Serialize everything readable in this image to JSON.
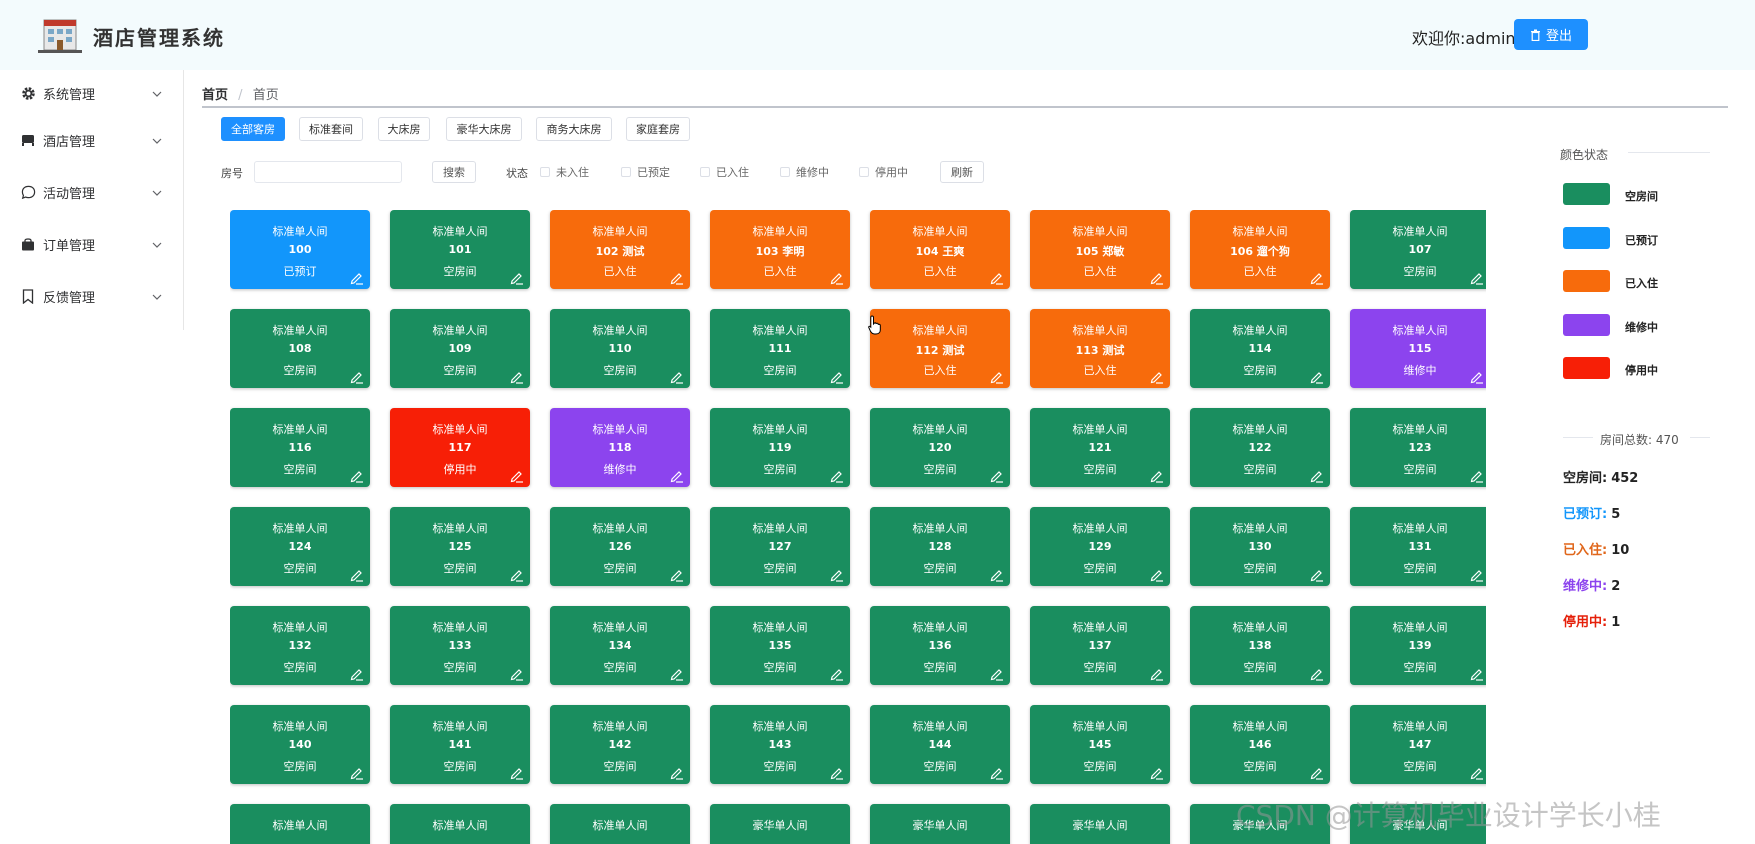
{
  "header": {
    "app_title": "酒店管理系统",
    "welcome": "欢迎你:admin",
    "logout_label": "登出"
  },
  "sidebar": {
    "items": [
      {
        "label": "系统管理",
        "icon": "gear-icon"
      },
      {
        "label": "酒店管理",
        "icon": "bed-icon"
      },
      {
        "label": "活动管理",
        "icon": "chat-icon"
      },
      {
        "label": "订单管理",
        "icon": "bag-icon"
      },
      {
        "label": "反馈管理",
        "icon": "bookmark-icon"
      }
    ]
  },
  "breadcrumb": {
    "first": "首页",
    "sep": "/",
    "current": "首页"
  },
  "tabs": [
    "全部客房",
    "标准套间",
    "大床房",
    "豪华大床房",
    "商务大床房",
    "家庭套房"
  ],
  "filters": {
    "room_label": "房号",
    "room_value": "",
    "search_label": "搜索",
    "status_label": "状态",
    "status_options": [
      "未入住",
      "已预定",
      "已入住",
      "维修中",
      "停用中"
    ],
    "refresh_label": "刷新"
  },
  "colors": {
    "empty": "#1a8e5f",
    "reserved": "#1296fb",
    "occupied": "#f76b0c",
    "repair": "#8c44ee",
    "disabled": "#f71f06"
  },
  "rooms": [
    {
      "type": "标准单人间",
      "number": "100",
      "status": "已预订",
      "color": "reserved"
    },
    {
      "type": "标准单人间",
      "number": "101",
      "status": "空房间",
      "color": "empty"
    },
    {
      "type": "标准单人间",
      "number": "102 测试",
      "status": "已入住",
      "color": "occupied"
    },
    {
      "type": "标准单人间",
      "number": "103 李明",
      "status": "已入住",
      "color": "occupied"
    },
    {
      "type": "标准单人间",
      "number": "104 王爽",
      "status": "已入住",
      "color": "occupied"
    },
    {
      "type": "标准单人间",
      "number": "105 郑敏",
      "status": "已入住",
      "color": "occupied"
    },
    {
      "type": "标准单人间",
      "number": "106 遛个狗",
      "status": "已入住",
      "color": "occupied"
    },
    {
      "type": "标准单人间",
      "number": "107",
      "status": "空房间",
      "color": "empty"
    },
    {
      "type": "标准单人间",
      "number": "108",
      "status": "空房间",
      "color": "empty"
    },
    {
      "type": "标准单人间",
      "number": "109",
      "status": "空房间",
      "color": "empty"
    },
    {
      "type": "标准单人间",
      "number": "110",
      "status": "空房间",
      "color": "empty"
    },
    {
      "type": "标准单人间",
      "number": "111",
      "status": "空房间",
      "color": "empty"
    },
    {
      "type": "标准单人间",
      "number": "112 测试",
      "status": "已入住",
      "color": "occupied"
    },
    {
      "type": "标准单人间",
      "number": "113 测试",
      "status": "已入住",
      "color": "occupied"
    },
    {
      "type": "标准单人间",
      "number": "114",
      "status": "空房间",
      "color": "empty"
    },
    {
      "type": "标准单人间",
      "number": "115",
      "status": "维修中",
      "color": "repair"
    },
    {
      "type": "标准单人间",
      "number": "116",
      "status": "空房间",
      "color": "empty"
    },
    {
      "type": "标准单人间",
      "number": "117",
      "status": "停用中",
      "color": "disabled"
    },
    {
      "type": "标准单人间",
      "number": "118",
      "status": "维修中",
      "color": "repair"
    },
    {
      "type": "标准单人间",
      "number": "119",
      "status": "空房间",
      "color": "empty"
    },
    {
      "type": "标准单人间",
      "number": "120",
      "status": "空房间",
      "color": "empty"
    },
    {
      "type": "标准单人间",
      "number": "121",
      "status": "空房间",
      "color": "empty"
    },
    {
      "type": "标准单人间",
      "number": "122",
      "status": "空房间",
      "color": "empty"
    },
    {
      "type": "标准单人间",
      "number": "123",
      "status": "空房间",
      "color": "empty"
    },
    {
      "type": "标准单人间",
      "number": "124",
      "status": "空房间",
      "color": "empty"
    },
    {
      "type": "标准单人间",
      "number": "125",
      "status": "空房间",
      "color": "empty"
    },
    {
      "type": "标准单人间",
      "number": "126",
      "status": "空房间",
      "color": "empty"
    },
    {
      "type": "标准单人间",
      "number": "127",
      "status": "空房间",
      "color": "empty"
    },
    {
      "type": "标准单人间",
      "number": "128",
      "status": "空房间",
      "color": "empty"
    },
    {
      "type": "标准单人间",
      "number": "129",
      "status": "空房间",
      "color": "empty"
    },
    {
      "type": "标准单人间",
      "number": "130",
      "status": "空房间",
      "color": "empty"
    },
    {
      "type": "标准单人间",
      "number": "131",
      "status": "空房间",
      "color": "empty"
    },
    {
      "type": "标准单人间",
      "number": "132",
      "status": "空房间",
      "color": "empty"
    },
    {
      "type": "标准单人间",
      "number": "133",
      "status": "空房间",
      "color": "empty"
    },
    {
      "type": "标准单人间",
      "number": "134",
      "status": "空房间",
      "color": "empty"
    },
    {
      "type": "标准单人间",
      "number": "135",
      "status": "空房间",
      "color": "empty"
    },
    {
      "type": "标准单人间",
      "number": "136",
      "status": "空房间",
      "color": "empty"
    },
    {
      "type": "标准单人间",
      "number": "137",
      "status": "空房间",
      "color": "empty"
    },
    {
      "type": "标准单人间",
      "number": "138",
      "status": "空房间",
      "color": "empty"
    },
    {
      "type": "标准单人间",
      "number": "139",
      "status": "空房间",
      "color": "empty"
    },
    {
      "type": "标准单人间",
      "number": "140",
      "status": "空房间",
      "color": "empty"
    },
    {
      "type": "标准单人间",
      "number": "141",
      "status": "空房间",
      "color": "empty"
    },
    {
      "type": "标准单人间",
      "number": "142",
      "status": "空房间",
      "color": "empty"
    },
    {
      "type": "标准单人间",
      "number": "143",
      "status": "空房间",
      "color": "empty"
    },
    {
      "type": "标准单人间",
      "number": "144",
      "status": "空房间",
      "color": "empty"
    },
    {
      "type": "标准单人间",
      "number": "145",
      "status": "空房间",
      "color": "empty"
    },
    {
      "type": "标准单人间",
      "number": "146",
      "status": "空房间",
      "color": "empty"
    },
    {
      "type": "标准单人间",
      "number": "147",
      "status": "空房间",
      "color": "empty"
    },
    {
      "type": "标准单人间",
      "number": "",
      "status": "",
      "color": "empty"
    },
    {
      "type": "标准单人间",
      "number": "",
      "status": "",
      "color": "empty"
    },
    {
      "type": "标准单人间",
      "number": "",
      "status": "",
      "color": "empty"
    },
    {
      "type": "豪华单人间",
      "number": "",
      "status": "",
      "color": "empty"
    },
    {
      "type": "豪华单人间",
      "number": "",
      "status": "",
      "color": "empty"
    },
    {
      "type": "豪华单人间",
      "number": "",
      "status": "",
      "color": "empty"
    },
    {
      "type": "豪华单人间",
      "number": "",
      "status": "",
      "color": "empty"
    },
    {
      "type": "豪华单人间",
      "number": "",
      "status": "",
      "color": "empty"
    }
  ],
  "legend": {
    "title": "颜色状态",
    "items": [
      {
        "label": "空房间",
        "color": "empty"
      },
      {
        "label": "已预订",
        "color": "reserved"
      },
      {
        "label": "已入住",
        "color": "occupied"
      },
      {
        "label": "维修中",
        "color": "repair"
      },
      {
        "label": "停用中",
        "color": "disabled"
      }
    ]
  },
  "stats": {
    "total_label": "房间总数: 470",
    "items": [
      {
        "label": "空房间:",
        "value": "452",
        "color": "#222222"
      },
      {
        "label": "已预订:",
        "value": "5",
        "color": "#1296fb"
      },
      {
        "label": "已入住:",
        "value": "10",
        "color": "#e0661a"
      },
      {
        "label": "维修中:",
        "value": "2",
        "color": "#8c44ee"
      },
      {
        "label": "停用中:",
        "value": "1",
        "color": "#e5200a"
      }
    ]
  },
  "watermark": "CSDN @计算机毕业设计学长小桂"
}
